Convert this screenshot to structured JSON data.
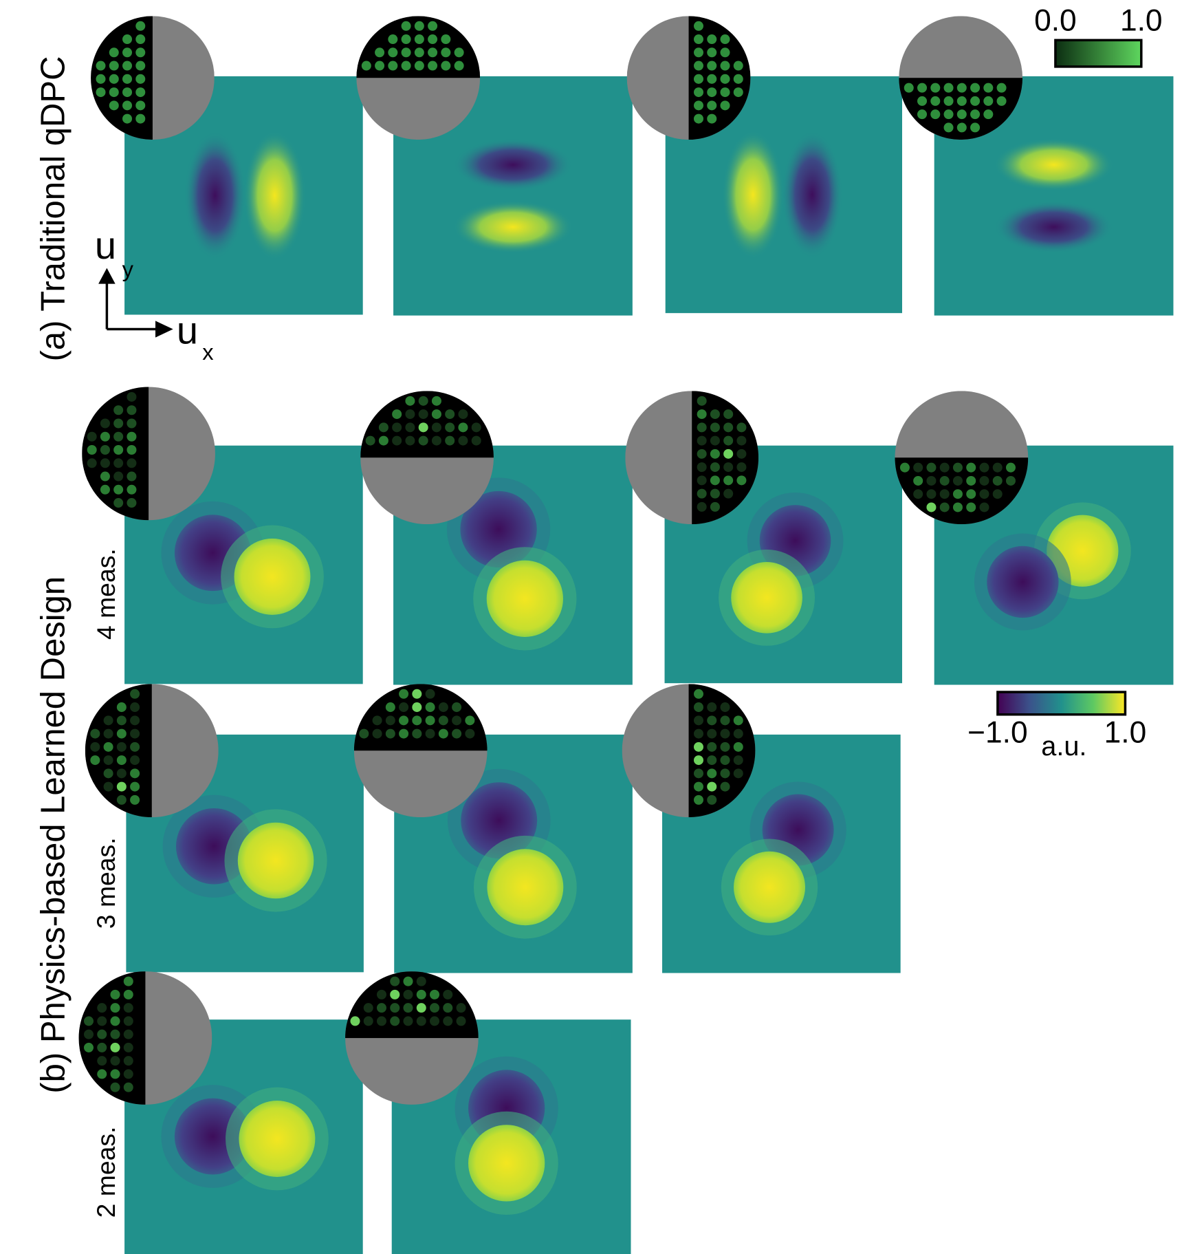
{
  "panel_a": {
    "label": "(a) Traditional qDPC"
  },
  "panel_b": {
    "label": "(b) Physics-based Learned Design",
    "rows": [
      "4 meas.",
      "3 meas.",
      "2 meas."
    ]
  },
  "axes": {
    "vertical": {
      "symbol": "u",
      "subscript": "y"
    },
    "horizontal": {
      "symbol": "u",
      "subscript": "x"
    }
  },
  "colorbars": [
    {
      "lim": [
        0,
        1
      ],
      "ticks": [
        {
          "value": 0,
          "label": "0.0"
        },
        {
          "value": 1,
          "label": "1.0"
        }
      ]
    },
    {
      "lim": [
        -1,
        1
      ],
      "ticks": [
        {
          "value": -1,
          "label": "−1.0"
        },
        {
          "value": 1,
          "label": "1.0"
        }
      ],
      "unit": "a.u."
    }
  ]
}
